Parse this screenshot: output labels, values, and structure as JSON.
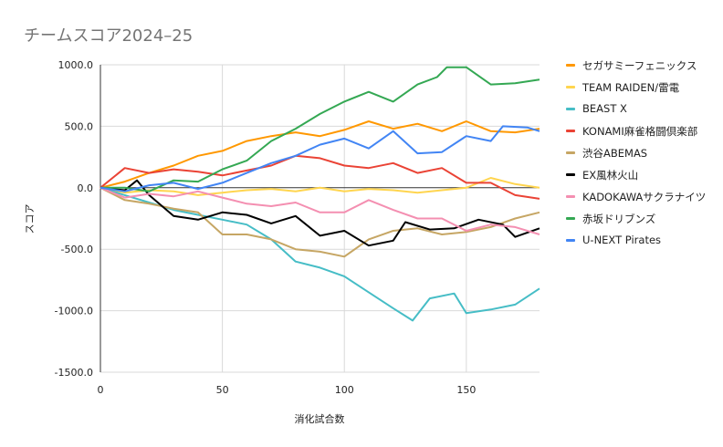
{
  "chart_data": {
    "type": "line",
    "title": "チームスコア2024–25",
    "xlabel": "消化試合数",
    "ylabel": "スコア",
    "xlim": [
      0,
      180
    ],
    "ylim": [
      -1500,
      1000
    ],
    "x_ticks": [
      "0",
      "50",
      "100",
      "150"
    ],
    "y_ticks": [
      "1000.0",
      "500.0",
      "0.0",
      "-500.0",
      "-1000.0",
      "-1500.0"
    ],
    "grid": true,
    "legend_position": "right",
    "series": [
      {
        "name": "セガサミーフェニックス",
        "color": "#ff9800",
        "points": [
          [
            0,
            0
          ],
          [
            10,
            50
          ],
          [
            20,
            120
          ],
          [
            30,
            180
          ],
          [
            40,
            260
          ],
          [
            50,
            300
          ],
          [
            60,
            380
          ],
          [
            70,
            420
          ],
          [
            80,
            450
          ],
          [
            90,
            420
          ],
          [
            100,
            470
          ],
          [
            110,
            540
          ],
          [
            120,
            480
          ],
          [
            130,
            520
          ],
          [
            140,
            460
          ],
          [
            150,
            540
          ],
          [
            160,
            460
          ],
          [
            170,
            450
          ],
          [
            180,
            480
          ]
        ]
      },
      {
        "name": "TEAM RAIDEN/雷電",
        "color": "#ffd54f",
        "points": [
          [
            0,
            0
          ],
          [
            10,
            -40
          ],
          [
            20,
            -20
          ],
          [
            30,
            -30
          ],
          [
            40,
            -60
          ],
          [
            50,
            -40
          ],
          [
            60,
            -20
          ],
          [
            70,
            -10
          ],
          [
            80,
            -30
          ],
          [
            90,
            0
          ],
          [
            100,
            -30
          ],
          [
            110,
            -10
          ],
          [
            120,
            -20
          ],
          [
            130,
            -40
          ],
          [
            140,
            -20
          ],
          [
            150,
            0
          ],
          [
            160,
            80
          ],
          [
            170,
            30
          ],
          [
            180,
            0
          ]
        ]
      },
      {
        "name": "BEAST X",
        "color": "#46bdc6",
        "points": [
          [
            0,
            0
          ],
          [
            10,
            -60
          ],
          [
            20,
            -120
          ],
          [
            30,
            -180
          ],
          [
            40,
            -220
          ],
          [
            50,
            -260
          ],
          [
            60,
            -300
          ],
          [
            70,
            -420
          ],
          [
            80,
            -600
          ],
          [
            90,
            -650
          ],
          [
            100,
            -720
          ],
          [
            110,
            -850
          ],
          [
            120,
            -980
          ],
          [
            128,
            -1080
          ],
          [
            135,
            -900
          ],
          [
            145,
            -860
          ],
          [
            150,
            -1020
          ],
          [
            160,
            -990
          ],
          [
            170,
            -950
          ],
          [
            180,
            -820
          ]
        ]
      },
      {
        "name": "KONAMI麻雀格闘倶楽部",
        "color": "#ea4335",
        "points": [
          [
            0,
            0
          ],
          [
            10,
            160
          ],
          [
            20,
            120
          ],
          [
            30,
            150
          ],
          [
            40,
            130
          ],
          [
            50,
            100
          ],
          [
            60,
            140
          ],
          [
            70,
            180
          ],
          [
            80,
            260
          ],
          [
            90,
            240
          ],
          [
            100,
            180
          ],
          [
            110,
            160
          ],
          [
            120,
            200
          ],
          [
            130,
            120
          ],
          [
            140,
            160
          ],
          [
            150,
            40
          ],
          [
            160,
            40
          ],
          [
            170,
            -60
          ],
          [
            180,
            -90
          ]
        ]
      },
      {
        "name": "渋谷ABEMAS",
        "color": "#c6a664",
        "points": [
          [
            0,
            0
          ],
          [
            10,
            -100
          ],
          [
            20,
            -130
          ],
          [
            30,
            -170
          ],
          [
            40,
            -200
          ],
          [
            50,
            -380
          ],
          [
            60,
            -380
          ],
          [
            70,
            -420
          ],
          [
            80,
            -500
          ],
          [
            90,
            -520
          ],
          [
            100,
            -560
          ],
          [
            110,
            -420
          ],
          [
            120,
            -350
          ],
          [
            130,
            -330
          ],
          [
            140,
            -380
          ],
          [
            150,
            -360
          ],
          [
            160,
            -320
          ],
          [
            170,
            -250
          ],
          [
            180,
            -200
          ]
        ]
      },
      {
        "name": "EX風林火山",
        "color": "#000000",
        "points": [
          [
            0,
            0
          ],
          [
            10,
            -20
          ],
          [
            15,
            60
          ],
          [
            20,
            -60
          ],
          [
            30,
            -230
          ],
          [
            40,
            -260
          ],
          [
            50,
            -200
          ],
          [
            60,
            -220
          ],
          [
            70,
            -290
          ],
          [
            80,
            -230
          ],
          [
            90,
            -390
          ],
          [
            100,
            -350
          ],
          [
            110,
            -470
          ],
          [
            120,
            -430
          ],
          [
            125,
            -280
          ],
          [
            135,
            -340
          ],
          [
            145,
            -330
          ],
          [
            155,
            -260
          ],
          [
            165,
            -300
          ],
          [
            170,
            -400
          ],
          [
            180,
            -330
          ]
        ]
      },
      {
        "name": "KADOKAWAサクラナイツ",
        "color": "#f48fb1",
        "points": [
          [
            0,
            0
          ],
          [
            10,
            -80
          ],
          [
            20,
            -50
          ],
          [
            30,
            -70
          ],
          [
            40,
            -30
          ],
          [
            50,
            -80
          ],
          [
            60,
            -130
          ],
          [
            70,
            -150
          ],
          [
            80,
            -120
          ],
          [
            90,
            -200
          ],
          [
            100,
            -200
          ],
          [
            110,
            -100
          ],
          [
            120,
            -180
          ],
          [
            130,
            -250
          ],
          [
            140,
            -250
          ],
          [
            150,
            -350
          ],
          [
            160,
            -300
          ],
          [
            170,
            -320
          ],
          [
            180,
            -380
          ]
        ]
      },
      {
        "name": "赤坂ドリブンズ",
        "color": "#34a853",
        "points": [
          [
            0,
            0
          ],
          [
            10,
            0
          ],
          [
            20,
            -30
          ],
          [
            30,
            60
          ],
          [
            40,
            50
          ],
          [
            50,
            150
          ],
          [
            60,
            220
          ],
          [
            70,
            380
          ],
          [
            80,
            480
          ],
          [
            90,
            600
          ],
          [
            100,
            700
          ],
          [
            110,
            780
          ],
          [
            120,
            700
          ],
          [
            130,
            840
          ],
          [
            138,
            900
          ],
          [
            142,
            980
          ],
          [
            150,
            980
          ],
          [
            160,
            840
          ],
          [
            170,
            850
          ],
          [
            180,
            880
          ]
        ]
      },
      {
        "name": "U-NEXT Pirates",
        "color": "#4285f4",
        "points": [
          [
            0,
            0
          ],
          [
            10,
            -30
          ],
          [
            20,
            20
          ],
          [
            30,
            40
          ],
          [
            40,
            -10
          ],
          [
            50,
            40
          ],
          [
            60,
            120
          ],
          [
            70,
            200
          ],
          [
            80,
            260
          ],
          [
            90,
            350
          ],
          [
            100,
            400
          ],
          [
            110,
            320
          ],
          [
            120,
            460
          ],
          [
            130,
            280
          ],
          [
            140,
            290
          ],
          [
            150,
            420
          ],
          [
            160,
            380
          ],
          [
            165,
            500
          ],
          [
            175,
            490
          ],
          [
            180,
            460
          ]
        ]
      }
    ]
  }
}
